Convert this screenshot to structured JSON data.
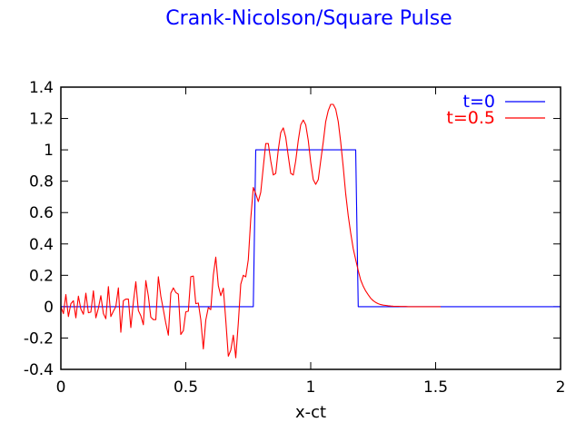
{
  "chart_data": {
    "type": "line",
    "title": "Crank-Nicolson/Square Pulse",
    "xlabel": "x-ct",
    "ylabel": "",
    "xlim": [
      0,
      2
    ],
    "ylim": [
      -0.4,
      1.4
    ],
    "xticks": [
      0,
      0.5,
      1,
      1.5,
      2
    ],
    "xtick_labels": [
      "0",
      "0.5",
      "1",
      "1.5",
      "2"
    ],
    "yticks": [
      -0.4,
      -0.2,
      0,
      0.2,
      0.4,
      0.6,
      0.8,
      1,
      1.2,
      1.4
    ],
    "ytick_labels": [
      "-0.4",
      "-0.2",
      "0",
      "0.2",
      "0.4",
      "0.6",
      "0.8",
      "1",
      "1.2",
      "1.4"
    ],
    "grid": false,
    "legend_position": "top-right",
    "title_color": "#0000ff",
    "series": [
      {
        "name": "t=0",
        "color": "#0000ff",
        "x": [
          0,
          0.77,
          0.78,
          1.18,
          1.19,
          2
        ],
        "y": [
          0,
          0,
          1,
          1,
          0,
          0
        ]
      },
      {
        "name": "t=0.5",
        "color": "#ff0000",
        "x_start": 0,
        "x_step": 0.01,
        "y": [
          0.0,
          -0.044,
          0.077,
          -0.063,
          0.019,
          0.038,
          -0.071,
          0.067,
          -0.015,
          -0.048,
          0.086,
          -0.039,
          -0.035,
          0.101,
          -0.071,
          -0.01,
          0.07,
          -0.044,
          -0.077,
          0.128,
          -0.063,
          -0.029,
          0.0,
          0.12,
          -0.163,
          0.038,
          0.048,
          0.048,
          -0.134,
          0.029,
          0.159,
          -0.025,
          -0.058,
          -0.115,
          0.166,
          0.067,
          -0.067,
          -0.083,
          -0.083,
          0.191,
          0.067,
          -0.019,
          -0.105,
          -0.182,
          0.086,
          0.12,
          0.09,
          0.08,
          -0.178,
          -0.153,
          -0.033,
          -0.029,
          0.191,
          0.195,
          0.019,
          0.023,
          -0.083,
          -0.27,
          -0.086,
          -0.006,
          -0.019,
          0.201,
          0.316,
          0.134,
          0.07,
          0.118,
          -0.086,
          -0.316,
          -0.278,
          -0.182,
          -0.326,
          -0.105,
          0.143,
          0.2,
          0.19,
          0.3,
          0.56,
          0.76,
          0.72,
          0.67,
          0.73,
          0.89,
          1.04,
          1.04,
          0.93,
          0.84,
          0.85,
          1.0,
          1.11,
          1.14,
          1.08,
          0.96,
          0.85,
          0.84,
          0.93,
          1.06,
          1.16,
          1.19,
          1.16,
          1.06,
          0.92,
          0.81,
          0.78,
          0.81,
          0.93,
          1.05,
          1.18,
          1.25,
          1.29,
          1.29,
          1.26,
          1.18,
          1.05,
          0.89,
          0.72,
          0.58,
          0.47,
          0.37,
          0.3,
          0.23,
          0.17,
          0.13,
          0.1,
          0.076,
          0.054,
          0.038,
          0.027,
          0.019,
          0.013,
          0.01,
          0.008,
          0.006,
          0.004,
          0.003,
          0.002,
          0.002,
          0.001,
          0.001,
          0.001,
          0,
          0,
          0,
          0,
          0,
          0,
          0,
          0,
          0,
          0,
          0,
          0,
          0,
          0
        ]
      }
    ]
  }
}
